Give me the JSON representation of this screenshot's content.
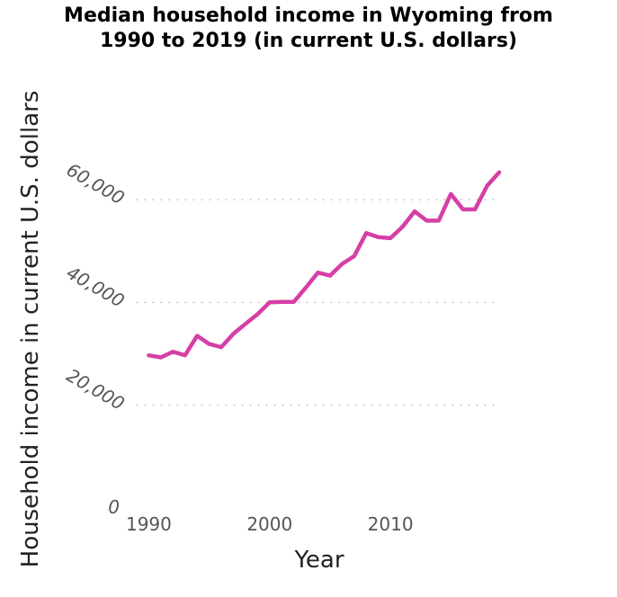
{
  "chart_data": {
    "type": "line",
    "title": "Median household income in Wyoming from 1990 to 2019 (in current U.S. dollars)",
    "title_lines": [
      "Median household income in Wyoming from",
      "1990 to 2019 (in current U.S. dollars)"
    ],
    "xlabel": "Year",
    "ylabel": "Household income in current U.S. dollars",
    "xlim": [
      1989,
      2019
    ],
    "ylim": [
      0,
      60000
    ],
    "x_ticks": [
      1990,
      2000,
      2010
    ],
    "y_ticks": [
      0,
      20000,
      40000,
      60000
    ],
    "y_tick_labels": [
      "0",
      "20,000",
      "40,000",
      "60,000"
    ],
    "grid": "horizontal dotted",
    "legend": "none",
    "series": [
      {
        "color": "#d63fa6",
        "x": [
          1990,
          1991,
          1992,
          1993,
          1994,
          1995,
          1996,
          1997,
          1998,
          1999,
          2000,
          2001,
          2002,
          2003,
          2004,
          2005,
          2006,
          2007,
          2008,
          2009,
          2010,
          2011,
          2012,
          2013,
          2014,
          2015,
          2016,
          2017,
          2018,
          2019
        ],
        "y": [
          29700,
          29300,
          30400,
          29700,
          33500,
          31900,
          31300,
          33900,
          35800,
          37700,
          40000,
          40100,
          40100,
          42900,
          45800,
          45200,
          47500,
          49000,
          53500,
          52700,
          52500,
          54700,
          57700,
          55900,
          55900,
          61100,
          58100,
          58100,
          62700,
          65300
        ]
      }
    ]
  }
}
